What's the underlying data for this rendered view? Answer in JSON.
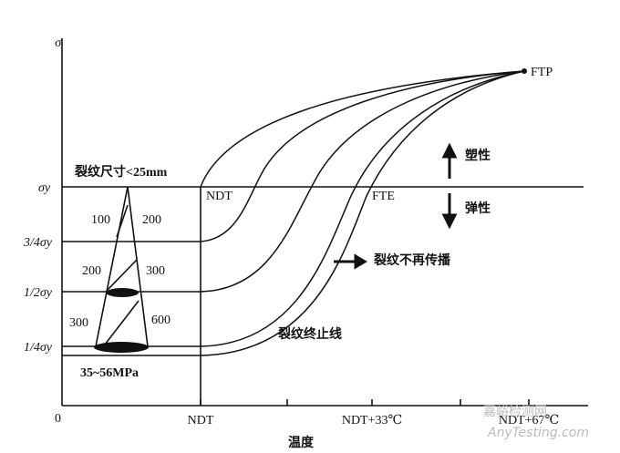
{
  "axes": {
    "y_label": "σ",
    "x_label": "温度",
    "origin": "0",
    "y_ticks": [
      "σy",
      "3/4σy",
      "1/2σy",
      "1/4σy"
    ],
    "x_ticks": [
      "NDT",
      "NDT+33℃",
      "NDT+67℃"
    ]
  },
  "annotations": {
    "crack_size": "裂纹尺寸<25mm",
    "stress_range": "35~56MPa",
    "ndt": "NDT",
    "fte": "FTE",
    "ftp": "FTP",
    "plastic": "塑性",
    "elastic": "弹性",
    "no_propagation": "裂纹不再传播",
    "arrest_line": "裂纹终止线",
    "cone_labels": [
      "100",
      "200",
      "200",
      "300",
      "300",
      "600"
    ]
  },
  "watermark": [
    "嘉峪检测网",
    "AnyTesting.com"
  ]
}
